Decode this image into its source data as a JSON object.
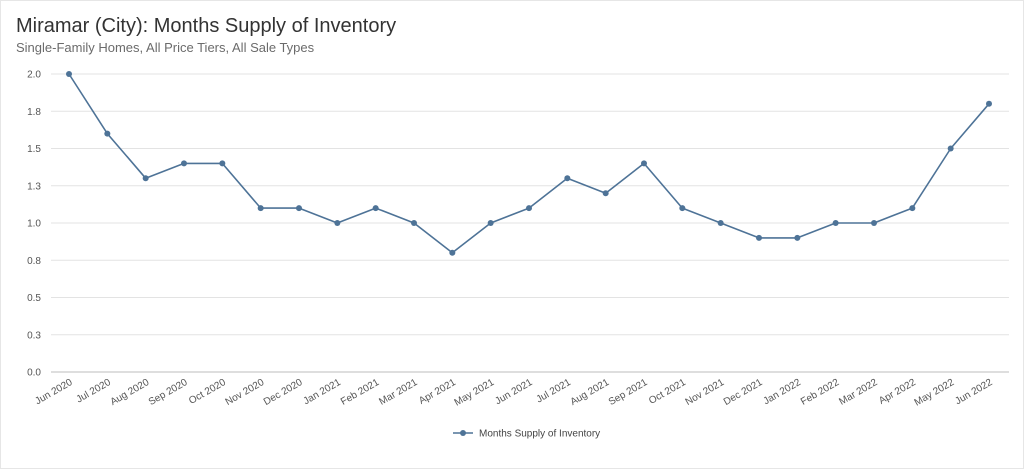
{
  "chart_data": {
    "type": "line",
    "title": "Miramar (City): Months Supply of Inventory",
    "subtitle": "Single-Family Homes, All Price Tiers, All Sale Types",
    "xlabel": "",
    "ylabel": "",
    "ylim": [
      0,
      2.0
    ],
    "yticks": [
      0.0,
      0.25,
      0.5,
      0.75,
      1.0,
      1.25,
      1.5,
      1.75,
      2.0
    ],
    "ytick_labels": [
      "0.0",
      "0.3",
      "0.5",
      "0.8",
      "1.0",
      "1.3",
      "1.5",
      "1.8",
      "2.0"
    ],
    "grid": true,
    "legend_position": "bottom-center",
    "categories": [
      "Jun 2020",
      "Jul 2020",
      "Aug 2020",
      "Sep 2020",
      "Oct 2020",
      "Nov 2020",
      "Dec 2020",
      "Jan 2021",
      "Feb 2021",
      "Mar 2021",
      "Apr 2021",
      "May 2021",
      "Jun 2021",
      "Jul 2021",
      "Aug 2021",
      "Sep 2021",
      "Oct 2021",
      "Nov 2021",
      "Dec 2021",
      "Jan 2022",
      "Feb 2022",
      "Mar 2022",
      "Apr 2022",
      "May 2022",
      "Jun 2022"
    ],
    "series": [
      {
        "name": "Months Supply of Inventory",
        "color": "#4e7397",
        "values": [
          2.0,
          1.6,
          1.3,
          1.4,
          1.4,
          1.1,
          1.1,
          1.0,
          1.1,
          1.0,
          0.8,
          1.0,
          1.1,
          1.3,
          1.2,
          1.4,
          1.1,
          1.0,
          0.9,
          0.9,
          1.0,
          1.0,
          1.1,
          1.5,
          1.8
        ]
      }
    ]
  }
}
